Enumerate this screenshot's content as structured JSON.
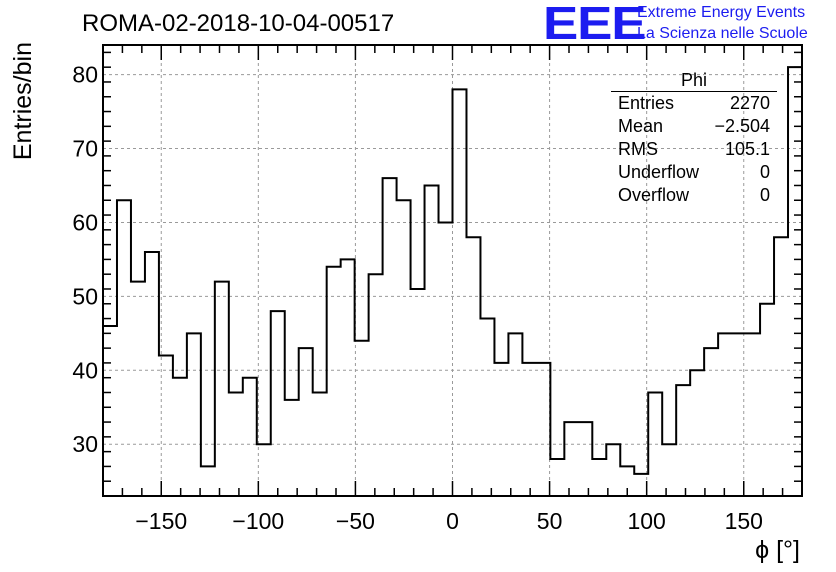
{
  "header": {
    "title": "ROMA-02-2018-10-04-00517",
    "logo_text": "EEE",
    "logo_line1": "Extreme Energy Events",
    "logo_line2": "La Scienza nelle Scuole",
    "brand_color": "#1c1cf0"
  },
  "stats": {
    "title": "Phi",
    "rows": [
      {
        "label": "Entries",
        "value": "2270"
      },
      {
        "label": "Mean",
        "value": "−2.504"
      },
      {
        "label": "RMS",
        "value": "105.1"
      },
      {
        "label": "Underflow",
        "value": "0"
      },
      {
        "label": "Overflow",
        "value": "0"
      }
    ]
  },
  "chart_data": {
    "type": "histogram",
    "title": "ROMA-02-2018-10-04-00517",
    "xlabel": "ϕ [°]",
    "ylabel": "Entries/bin",
    "xlim": [
      -180,
      180
    ],
    "ylim": [
      23,
      84
    ],
    "bin_width": 7.2,
    "xticks": [
      -150,
      -100,
      -50,
      0,
      50,
      100,
      150
    ],
    "xtick_labels": [
      "−150",
      "−100",
      "−50",
      "0",
      "50",
      "100",
      "150"
    ],
    "yticks": [
      30,
      40,
      50,
      60,
      70,
      80
    ],
    "ytick_labels": [
      "30",
      "40",
      "50",
      "60",
      "70",
      "80"
    ],
    "grid": true,
    "values": [
      46,
      63,
      52,
      56,
      42,
      39,
      45,
      27,
      52,
      37,
      39,
      30,
      48,
      36,
      43,
      37,
      54,
      55,
      44,
      53,
      66,
      63,
      51,
      65,
      60,
      78,
      58,
      47,
      41,
      45,
      41,
      41,
      28,
      33,
      33,
      28,
      30,
      27,
      26,
      37,
      30,
      38,
      40,
      43,
      45,
      45,
      45,
      49,
      58,
      81
    ]
  }
}
